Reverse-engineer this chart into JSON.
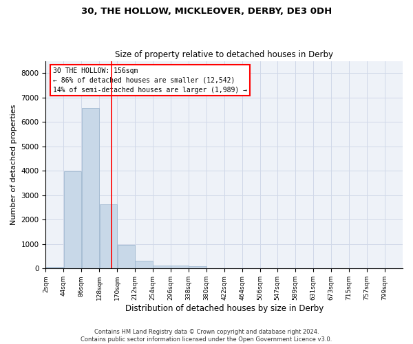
{
  "title": "30, THE HOLLOW, MICKLEOVER, DERBY, DE3 0DH",
  "subtitle": "Size of property relative to detached houses in Derby",
  "xlabel": "Distribution of detached houses by size in Derby",
  "ylabel": "Number of detached properties",
  "bar_color": "#c8d8e8",
  "bar_edge_color": "#a0b8d0",
  "grid_color": "#d0d8e8",
  "background_color": "#eef2f8",
  "vline_color": "red",
  "vline_x": 156,
  "annotation_line1": "30 THE HOLLOW: 156sqm",
  "annotation_line2": "← 86% of detached houses are smaller (12,542)",
  "annotation_line3": "14% of semi-detached houses are larger (1,989) →",
  "footer_line1": "Contains HM Land Registry data © Crown copyright and database right 2024.",
  "footer_line2": "Contains public sector information licensed under the Open Government Licence v3.0.",
  "bin_edges": [
    2,
    44,
    86,
    128,
    170,
    212,
    254,
    296,
    338,
    380,
    422,
    464,
    506,
    547,
    589,
    631,
    673,
    715,
    757,
    799,
    841
  ],
  "bar_heights": [
    80,
    3980,
    6580,
    2620,
    960,
    310,
    130,
    110,
    90,
    0,
    0,
    0,
    0,
    0,
    0,
    0,
    0,
    0,
    0,
    0
  ],
  "ylim": [
    0,
    8500
  ],
  "yticks": [
    0,
    1000,
    2000,
    3000,
    4000,
    5000,
    6000,
    7000,
    8000
  ]
}
